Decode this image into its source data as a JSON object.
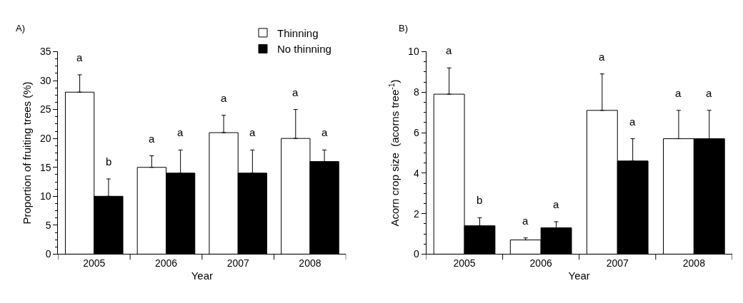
{
  "chart_data": [
    {
      "type": "bar",
      "title": "A)",
      "xlabel": "Year",
      "ylabel": "Proportion of fruiting trees (%)",
      "categories": [
        "2005",
        "2006",
        "2007",
        "2008"
      ],
      "series": [
        {
          "name": "Thinning",
          "color": "#ffffff",
          "values": [
            28,
            15,
            21,
            20
          ],
          "errors": [
            [
              28,
              31
            ],
            [
              15,
              17
            ],
            [
              21,
              24
            ],
            [
              20,
              25
            ]
          ]
        },
        {
          "name": "No thinning",
          "color": "#000000",
          "values": [
            10,
            14,
            14,
            16
          ],
          "errors": [
            [
              10,
              13
            ],
            [
              14,
              18
            ],
            [
              14,
              18
            ],
            [
              16,
              18
            ]
          ]
        }
      ],
      "ylim": [
        0,
        35
      ],
      "yticks": [
        0,
        5,
        10,
        15,
        20,
        25,
        30,
        35
      ],
      "legend": "top right",
      "annotations": [
        "a",
        "b",
        "a",
        "a",
        "a",
        "a",
        "a",
        "a"
      ]
    },
    {
      "type": "bar",
      "title": "B)",
      "xlabel": "Year",
      "ylabel": "Acorn crop size  (acorns tree$^{-1}$)",
      "categories": [
        "2005",
        "2006",
        "2007",
        "2008"
      ],
      "series": [
        {
          "color": "#ffffff",
          "values": [
            7.9,
            0.7,
            7.1,
            5.7
          ],
          "errors": [
            [
              7.9,
              9.2
            ],
            [
              0.7,
              0.8
            ],
            [
              7.1,
              8.9
            ],
            [
              5.7,
              7.1
            ]
          ]
        },
        {
          "color": "#000000",
          "values": [
            1.4,
            1.3,
            4.6,
            5.7
          ],
          "errors": [
            [
              1.4,
              1.8
            ],
            [
              1.3,
              1.6
            ],
            [
              4.6,
              5.7
            ],
            [
              5.7,
              7.1
            ]
          ]
        }
      ],
      "ylim": [
        0,
        10
      ],
      "yticks": [
        0,
        2,
        4,
        6,
        8,
        10
      ],
      "annotations": [
        "a",
        "b",
        "a",
        "a",
        "a",
        "a",
        "a",
        "a"
      ]
    }
  ]
}
